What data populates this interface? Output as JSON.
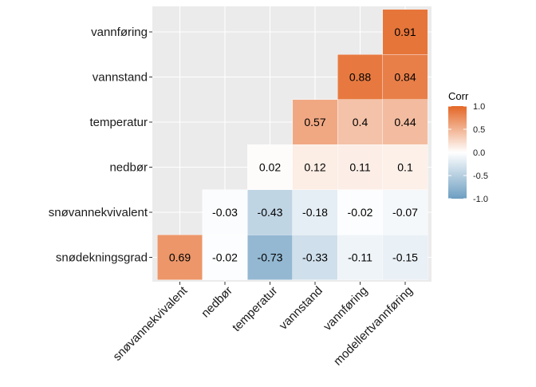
{
  "chart_data": {
    "type": "heatmap",
    "title": "",
    "xlabel": "",
    "ylabel": "",
    "x_categories": [
      "snøvannekvivalent",
      "nedbør",
      "temperatur",
      "vannstand",
      "vannføring",
      "modellertvannføring"
    ],
    "y_categories": [
      "snødekningsgrad",
      "snøvannekvivalent",
      "nedbør",
      "temperatur",
      "vannstand",
      "vannføring"
    ],
    "cells": [
      {
        "x": "snøvannekvivalent",
        "y": "snødekningsgrad",
        "value": 0.69,
        "label": "0.69"
      },
      {
        "x": "nedbør",
        "y": "snødekningsgrad",
        "value": -0.02,
        "label": "-0.02"
      },
      {
        "x": "temperatur",
        "y": "snødekningsgrad",
        "value": -0.73,
        "label": "-0.73"
      },
      {
        "x": "vannstand",
        "y": "snødekningsgrad",
        "value": -0.33,
        "label": "-0.33"
      },
      {
        "x": "vannføring",
        "y": "snødekningsgrad",
        "value": -0.11,
        "label": "-0.11"
      },
      {
        "x": "modellertvannføring",
        "y": "snødekningsgrad",
        "value": -0.15,
        "label": "-0.15"
      },
      {
        "x": "nedbør",
        "y": "snøvannekvivalent",
        "value": -0.03,
        "label": "-0.03"
      },
      {
        "x": "temperatur",
        "y": "snøvannekvivalent",
        "value": -0.43,
        "label": "-0.43"
      },
      {
        "x": "vannstand",
        "y": "snøvannekvivalent",
        "value": -0.18,
        "label": "-0.18"
      },
      {
        "x": "vannføring",
        "y": "snøvannekvivalent",
        "value": -0.02,
        "label": "-0.02"
      },
      {
        "x": "modellertvannføring",
        "y": "snøvannekvivalent",
        "value": -0.07,
        "label": "-0.07"
      },
      {
        "x": "temperatur",
        "y": "nedbør",
        "value": 0.02,
        "label": "0.02"
      },
      {
        "x": "vannstand",
        "y": "nedbør",
        "value": 0.12,
        "label": "0.12"
      },
      {
        "x": "vannføring",
        "y": "nedbør",
        "value": 0.11,
        "label": "0.11"
      },
      {
        "x": "modellertvannføring",
        "y": "nedbør",
        "value": 0.1,
        "label": "0.1"
      },
      {
        "x": "vannstand",
        "y": "temperatur",
        "value": 0.57,
        "label": "0.57"
      },
      {
        "x": "vannføring",
        "y": "temperatur",
        "value": 0.4,
        "label": "0.4"
      },
      {
        "x": "modellertvannføring",
        "y": "temperatur",
        "value": 0.44,
        "label": "0.44"
      },
      {
        "x": "vannføring",
        "y": "vannstand",
        "value": 0.88,
        "label": "0.88"
      },
      {
        "x": "modellertvannføring",
        "y": "vannstand",
        "value": 0.84,
        "label": "0.84"
      },
      {
        "x": "modellertvannføring",
        "y": "vannføring",
        "value": 0.91,
        "label": "0.91"
      }
    ],
    "legend": {
      "title": "Corr",
      "placement": "right",
      "range": [
        -1.0,
        1.0
      ],
      "ticks": [
        {
          "value": 1.0,
          "label": "1.0"
        },
        {
          "value": 0.5,
          "label": "0.5"
        },
        {
          "value": 0.0,
          "label": "0.0"
        },
        {
          "value": -0.5,
          "label": "-0.5"
        },
        {
          "value": -1.0,
          "label": "-1.0"
        }
      ]
    },
    "colors": {
      "low": "#6D9EC1",
      "mid": "#FFFFFF",
      "high": "#E46726",
      "panel_background": "#EBEBEB",
      "grid": "#FFFFFF"
    },
    "grid": true
  }
}
